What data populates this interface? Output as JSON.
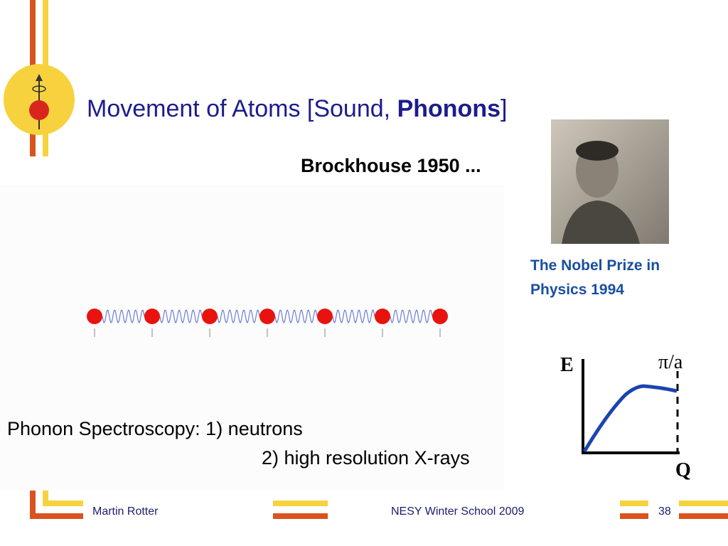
{
  "slide": {
    "title": {
      "text": "Movement of Atoms [Sound, ",
      "emphasis": "Phonons",
      "suffix": "]"
    },
    "subtitle": "Brockhouse 1950 ...",
    "caption": [
      "The Nobel Prize in",
      "Physics 1994"
    ],
    "spectroscopy": [
      "Phonon Spectroscopy: 1) neutrons",
      "2) high resolution X-rays"
    ],
    "diagram": {
      "y_label": "E",
      "x_label": "Q",
      "boundary_label": "π/a"
    },
    "footer": {
      "author": "Martin Rotter",
      "event": "NESY Winter School 2009",
      "page": "38"
    }
  }
}
